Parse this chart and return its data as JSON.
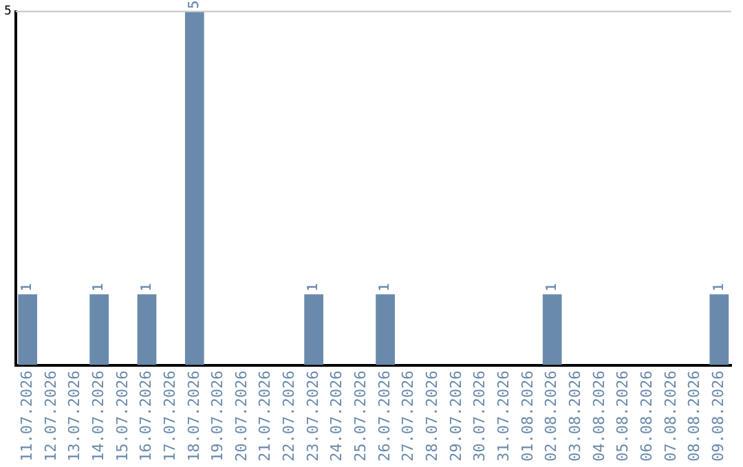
{
  "chart_data": {
    "type": "bar",
    "categories": [
      "11.07.2026",
      "12.07.2026",
      "13.07.2026",
      "14.07.2026",
      "15.07.2026",
      "16.07.2026",
      "17.07.2026",
      "18.07.2026",
      "19.07.2026",
      "20.07.2026",
      "21.07.2026",
      "22.07.2026",
      "23.07.2026",
      "24.07.2026",
      "25.07.2026",
      "26.07.2026",
      "27.07.2026",
      "28.07.2026",
      "29.07.2026",
      "30.07.2026",
      "31.07.2026",
      "01.08.2026",
      "02.08.2026",
      "03.08.2026",
      "04.08.2026",
      "05.08.2026",
      "06.08.2026",
      "07.08.2026",
      "08.08.2026",
      "09.08.2026"
    ],
    "values": [
      1,
      0,
      0,
      1,
      0,
      1,
      0,
      5,
      0,
      0,
      0,
      0,
      1,
      0,
      0,
      1,
      0,
      0,
      0,
      0,
      0,
      0,
      1,
      0,
      0,
      0,
      0,
      0,
      0,
      1
    ],
    "value_labels": [
      "1",
      null,
      null,
      "1",
      null,
      "1",
      null,
      "5",
      null,
      null,
      null,
      null,
      "1",
      null,
      null,
      "1",
      null,
      null,
      null,
      null,
      null,
      null,
      "1",
      null,
      null,
      null,
      null,
      null,
      null,
      "1"
    ],
    "color": "#6a8aab",
    "ylim": [
      0,
      5
    ],
    "yticks": [
      5
    ],
    "legend": false,
    "ref_lines": [
      {
        "axis": "y",
        "value": 5,
        "color": "#cccccc"
      }
    ]
  }
}
